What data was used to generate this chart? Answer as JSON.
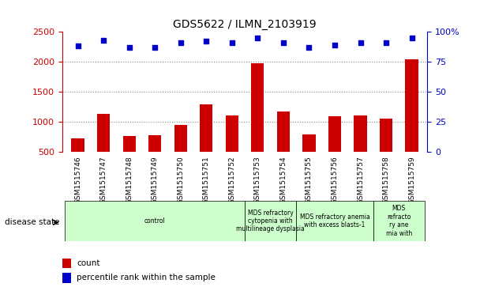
{
  "title": "GDS5622 / ILMN_2103919",
  "samples": [
    "GSM1515746",
    "GSM1515747",
    "GSM1515748",
    "GSM1515749",
    "GSM1515750",
    "GSM1515751",
    "GSM1515752",
    "GSM1515753",
    "GSM1515754",
    "GSM1515755",
    "GSM1515756",
    "GSM1515757",
    "GSM1515758",
    "GSM1515759"
  ],
  "counts": [
    730,
    1130,
    770,
    785,
    950,
    1290,
    1110,
    1970,
    1170,
    790,
    1100,
    1110,
    1060,
    2040
  ],
  "percentile_ranks": [
    88,
    93,
    87,
    87,
    91,
    92,
    91,
    95,
    91,
    87,
    89,
    91,
    91,
    95
  ],
  "bar_color": "#cc0000",
  "scatter_color": "#0000cc",
  "ylim_left": [
    500,
    2500
  ],
  "ylim_right": [
    0,
    100
  ],
  "yticks_left": [
    500,
    1000,
    1500,
    2000,
    2500
  ],
  "yticks_right": [
    0,
    25,
    50,
    75,
    100
  ],
  "right_tick_labels": [
    "0",
    "25",
    "50",
    "75",
    "100%"
  ],
  "disease_groups": [
    {
      "label": "control",
      "start": 0,
      "end": 7,
      "color": "#ccffcc"
    },
    {
      "label": "MDS refractory\ncytopenia with\nmultilineage dysplasia",
      "start": 7,
      "end": 9,
      "color": "#ccffcc"
    },
    {
      "label": "MDS refractory anemia\nwith excess blasts-1",
      "start": 9,
      "end": 12,
      "color": "#ccffcc"
    },
    {
      "label": "MDS\nrefracto\nry ane\nmia with",
      "start": 12,
      "end": 14,
      "color": "#ccffcc"
    }
  ],
  "disease_state_label": "disease state",
  "legend_count_label": "count",
  "legend_pct_label": "percentile rank within the sample",
  "bg_color": "#ffffff",
  "tick_area_color": "#cccccc",
  "grid_color": "#888888"
}
